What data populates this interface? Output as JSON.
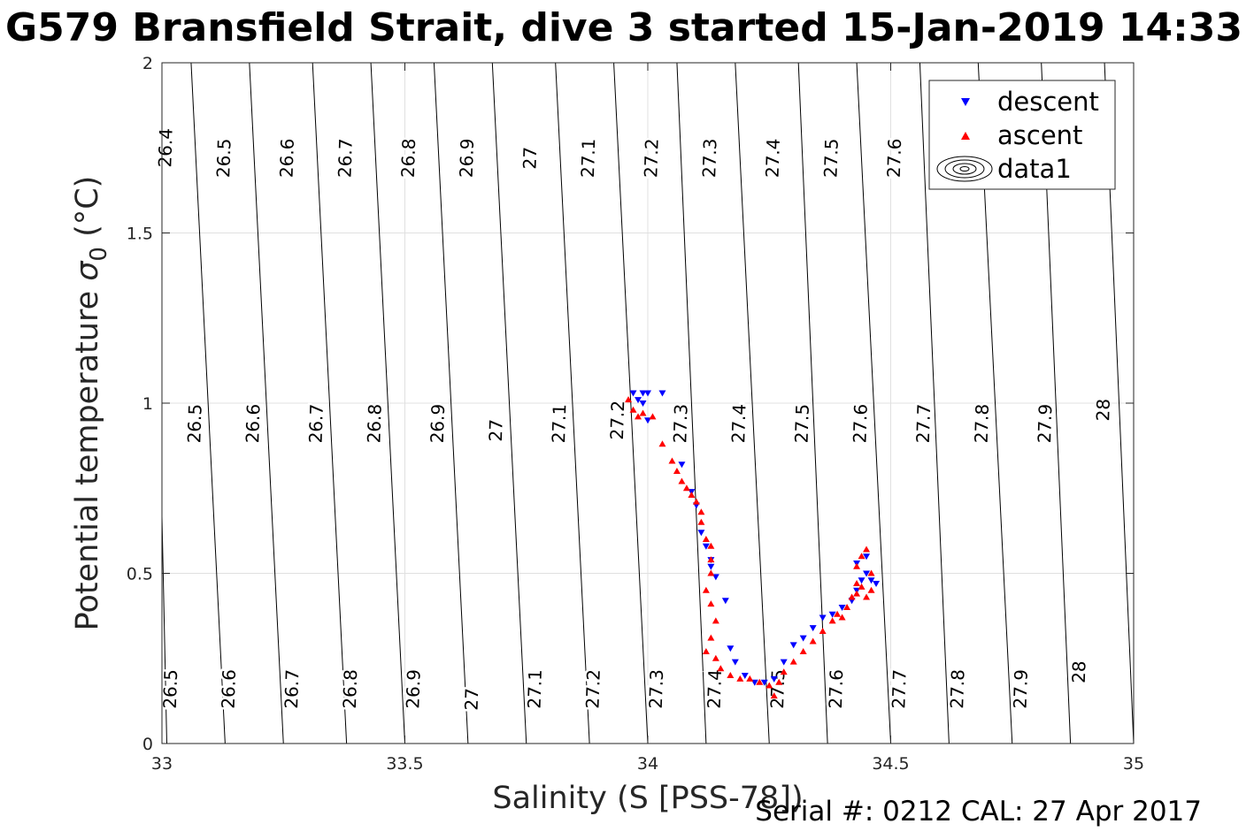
{
  "chart_data": {
    "type": "scatter",
    "title": "G579 Bransfield Strait, dive 3 started 15-Jan-2019 14:33",
    "xlabel": "Salinity (S [PSS-78])",
    "ylabel_main": "Potential temperature ",
    "ylabel_sym": "σ",
    "ylabel_sub": "0",
    "ylabel_unit": " (°C)",
    "footer": "Serial #: 0212  CAL: 27 Apr 2017",
    "xlim": [
      33,
      35
    ],
    "ylim": [
      0,
      2
    ],
    "xticks": [
      "33",
      "33.5",
      "34",
      "34.5",
      "35"
    ],
    "yticks": [
      "0",
      "0.5",
      "1",
      "1.5",
      "2"
    ],
    "grid": true,
    "legend_position": "top-right",
    "legend": [
      "descent",
      "ascent",
      "data1"
    ],
    "colors": {
      "descent": "#0000ff",
      "ascent": "#ff0000",
      "contour": "#000000"
    },
    "contours": {
      "lines": [
        {
          "xb": 33.01,
          "xt": 32.98
        },
        {
          "xb": 33.13,
          "xt": 33.06
        },
        {
          "xb": 33.25,
          "xt": 33.18
        },
        {
          "xb": 33.38,
          "xt": 33.31
        },
        {
          "xb": 33.5,
          "xt": 33.43
        },
        {
          "xb": 33.63,
          "xt": 33.56
        },
        {
          "xb": 33.75,
          "xt": 33.68
        },
        {
          "xb": 33.88,
          "xt": 33.81
        },
        {
          "xb": 34.0,
          "xt": 33.93
        },
        {
          "xb": 34.12,
          "xt": 34.06
        },
        {
          "xb": 34.25,
          "xt": 34.18
        },
        {
          "xb": 34.37,
          "xt": 34.31
        },
        {
          "xb": 34.5,
          "xt": 34.43
        },
        {
          "xb": 34.62,
          "xt": 34.56
        },
        {
          "xb": 34.75,
          "xt": 34.68
        },
        {
          "xb": 34.87,
          "xt": 34.81
        },
        {
          "xb": 35.0,
          "xt": 34.94
        }
      ],
      "labels": [
        {
          "text": "26.4",
          "x": 33.01,
          "y": 1.75
        },
        {
          "text": "26.5",
          "x": 33.13,
          "y": 1.72
        },
        {
          "text": "26.6",
          "x": 33.26,
          "y": 1.72
        },
        {
          "text": "26.7",
          "x": 33.38,
          "y": 1.72
        },
        {
          "text": "26.8",
          "x": 33.51,
          "y": 1.72
        },
        {
          "text": "26.9",
          "x": 33.63,
          "y": 1.72
        },
        {
          "text": "27",
          "x": 33.76,
          "y": 1.72
        },
        {
          "text": "27.1",
          "x": 33.88,
          "y": 1.72
        },
        {
          "text": "27.2",
          "x": 34.01,
          "y": 1.72
        },
        {
          "text": "27.3",
          "x": 34.13,
          "y": 1.72
        },
        {
          "text": "27.4",
          "x": 34.26,
          "y": 1.72
        },
        {
          "text": "27.5",
          "x": 34.38,
          "y": 1.72
        },
        {
          "text": "27.6",
          "x": 34.51,
          "y": 1.72
        },
        {
          "text": "26.5",
          "x": 33.07,
          "y": 0.94
        },
        {
          "text": "26.6",
          "x": 33.19,
          "y": 0.94
        },
        {
          "text": "26.7",
          "x": 33.32,
          "y": 0.94
        },
        {
          "text": "26.8",
          "x": 33.44,
          "y": 0.94
        },
        {
          "text": "26.9",
          "x": 33.57,
          "y": 0.94
        },
        {
          "text": "27",
          "x": 33.69,
          "y": 0.92
        },
        {
          "text": "27.1",
          "x": 33.82,
          "y": 0.94
        },
        {
          "text": "27.2",
          "x": 33.94,
          "y": 0.95
        },
        {
          "text": "27.3",
          "x": 34.07,
          "y": 0.94
        },
        {
          "text": "27.4",
          "x": 34.19,
          "y": 0.94
        },
        {
          "text": "27.5",
          "x": 34.32,
          "y": 0.94
        },
        {
          "text": "27.6",
          "x": 34.44,
          "y": 0.94
        },
        {
          "text": "27.7",
          "x": 34.57,
          "y": 0.94
        },
        {
          "text": "27.8",
          "x": 34.69,
          "y": 0.94
        },
        {
          "text": "27.9",
          "x": 34.82,
          "y": 0.94
        },
        {
          "text": "28",
          "x": 34.94,
          "y": 0.98
        },
        {
          "text": "26.5",
          "x": 33.02,
          "y": 0.16
        },
        {
          "text": "26.6",
          "x": 33.14,
          "y": 0.16
        },
        {
          "text": "26.7",
          "x": 33.27,
          "y": 0.16
        },
        {
          "text": "26.8",
          "x": 33.39,
          "y": 0.16
        },
        {
          "text": "26.9",
          "x": 33.52,
          "y": 0.16
        },
        {
          "text": "27",
          "x": 33.64,
          "y": 0.13
        },
        {
          "text": "27.1",
          "x": 33.77,
          "y": 0.16
        },
        {
          "text": "27.2",
          "x": 33.89,
          "y": 0.16
        },
        {
          "text": "27.3",
          "x": 34.02,
          "y": 0.16
        },
        {
          "text": "27.4",
          "x": 34.14,
          "y": 0.16
        },
        {
          "text": "27.5",
          "x": 34.27,
          "y": 0.16
        },
        {
          "text": "27.6",
          "x": 34.39,
          "y": 0.16
        },
        {
          "text": "27.7",
          "x": 34.52,
          "y": 0.16
        },
        {
          "text": "27.8",
          "x": 34.64,
          "y": 0.16
        },
        {
          "text": "27.9",
          "x": 34.77,
          "y": 0.16
        },
        {
          "text": "28",
          "x": 34.89,
          "y": 0.21
        }
      ]
    },
    "series": [
      {
        "name": "descent",
        "marker": "triangle-down",
        "x": [
          33.97,
          33.99,
          34.0,
          34.03,
          33.98,
          34.0,
          33.99,
          34.07,
          34.09,
          34.1,
          34.11,
          34.12,
          34.13,
          34.13,
          34.14,
          34.16,
          34.17,
          34.18,
          34.2,
          34.22,
          34.24,
          34.26,
          34.28,
          34.3,
          34.32,
          34.34,
          34.36,
          34.38,
          34.4,
          34.42,
          34.43,
          34.44,
          34.45,
          34.46,
          34.47,
          34.43,
          34.45
        ],
        "y": [
          1.03,
          1.03,
          1.03,
          1.03,
          1.01,
          0.95,
          1.0,
          0.82,
          0.74,
          0.7,
          0.62,
          0.58,
          0.52,
          0.54,
          0.49,
          0.42,
          0.28,
          0.24,
          0.2,
          0.18,
          0.18,
          0.19,
          0.24,
          0.29,
          0.31,
          0.34,
          0.37,
          0.38,
          0.4,
          0.42,
          0.45,
          0.48,
          0.5,
          0.48,
          0.47,
          0.53,
          0.55
        ]
      },
      {
        "name": "ascent",
        "marker": "triangle-up",
        "x": [
          33.96,
          33.97,
          33.98,
          33.99,
          34.01,
          34.03,
          34.05,
          34.06,
          34.07,
          34.08,
          34.09,
          34.1,
          34.11,
          34.11,
          34.12,
          34.13,
          34.13,
          34.13,
          34.12,
          34.13,
          34.14,
          34.13,
          34.12,
          34.14,
          34.15,
          34.17,
          34.19,
          34.21,
          34.23,
          34.25,
          34.26,
          34.27,
          34.28,
          34.3,
          34.32,
          34.34,
          34.36,
          34.38,
          34.39,
          34.4,
          34.41,
          34.42,
          34.43,
          34.43,
          34.44,
          34.45,
          34.46,
          34.44,
          34.43,
          34.45,
          34.46
        ],
        "y": [
          1.01,
          0.98,
          0.96,
          0.97,
          0.96,
          0.88,
          0.83,
          0.8,
          0.77,
          0.75,
          0.73,
          0.71,
          0.68,
          0.65,
          0.6,
          0.58,
          0.54,
          0.5,
          0.45,
          0.41,
          0.36,
          0.31,
          0.27,
          0.25,
          0.22,
          0.2,
          0.19,
          0.19,
          0.18,
          0.17,
          0.14,
          0.18,
          0.21,
          0.24,
          0.27,
          0.3,
          0.33,
          0.36,
          0.38,
          0.37,
          0.4,
          0.43,
          0.47,
          0.52,
          0.55,
          0.57,
          0.5,
          0.46,
          0.44,
          0.43,
          0.45
        ]
      }
    ]
  }
}
